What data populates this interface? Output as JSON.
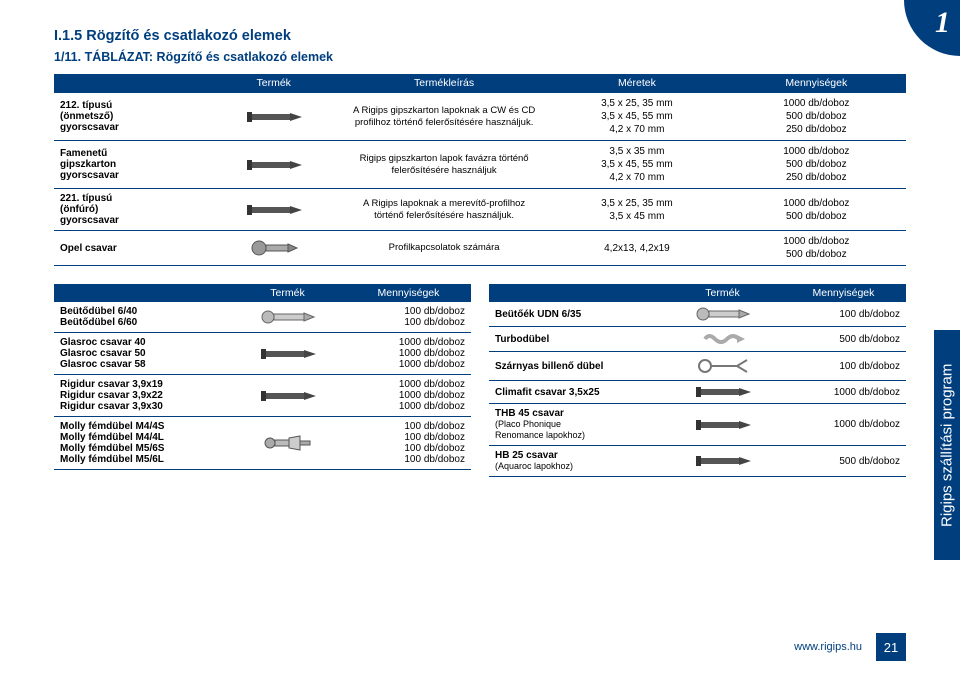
{
  "badge": "1",
  "section_title": "I.1.5 Rögzítő és csatlakozó elemek",
  "table_title": "1/11. TÁBLÁZAT: Rögzítő és csatlakozó elemek",
  "main_table": {
    "headers": [
      "",
      "Termék",
      "Termékleírás",
      "Méretek",
      "Mennyiségek"
    ],
    "rows": [
      {
        "name": "212. típusú\n(önmetsző)\ngyorscsavar",
        "desc": "A Rigips gipszkarton lapoknak a CW és CD profilhoz történő felerősítésére használjuk.",
        "sizes": "3,5 x 25, 35 mm\n3,5 x 45, 55 mm\n4,2 x 70 mm",
        "qty": "1000 db/doboz\n500 db/doboz\n250 db/doboz"
      },
      {
        "name": "Famenetű\ngipszkarton\ngyorscsavar",
        "desc": "Rigips gipszkarton lapok favázra történő felerősítésére használjuk",
        "sizes": "3,5 x 35 mm\n3,5 x 45, 55 mm\n4,2 x 70 mm",
        "qty": "1000 db/doboz\n500 db/doboz\n250 db/doboz"
      },
      {
        "name": "221. típusú\n(önfúró)\ngyorscsavar",
        "desc": "A Rigips lapoknak a merevítő-profilhoz történő felerősítésére használjuk.",
        "sizes": "3,5 x 25, 35 mm\n3,5 x 45 mm",
        "qty": "1000 db/doboz\n500 db/doboz"
      },
      {
        "name": "Opel csavar",
        "desc": "Profilkapcsolatok számára",
        "sizes": "4,2x13, 4,2x19",
        "qty": "1000 db/doboz\n500 db/doboz"
      }
    ]
  },
  "left_table": {
    "headers": [
      "",
      "Termék",
      "Mennyiségek"
    ],
    "rows": [
      {
        "name": "Beütődübel 6/40\nBeütődübel 6/60",
        "qty": "100 db/doboz\n100 db/doboz"
      },
      {
        "name": "Glasroc csavar 40\nGlasroc csavar 50\nGlasroc csavar 58",
        "qty": "1000 db/doboz\n1000 db/doboz\n1000 db/doboz"
      },
      {
        "name": "Rigidur csavar 3,9x19\nRigidur csavar 3,9x22\nRigidur csavar 3,9x30",
        "qty": "1000 db/doboz\n1000 db/doboz\n1000 db/doboz"
      },
      {
        "name": "Molly fémdübel M4/4S\nMolly fémdübel M4/4L\nMolly fémdübel M5/6S\nMolly fémdübel M5/6L",
        "qty": "100 db/doboz\n100 db/doboz\n100 db/doboz\n100 db/doboz"
      }
    ]
  },
  "right_table": {
    "headers": [
      "",
      "Termék",
      "Mennyiségek"
    ],
    "rows": [
      {
        "name": "Beütőék UDN 6/35",
        "qty": "100 db/doboz"
      },
      {
        "name": "Turbodübel",
        "qty": "500 db/doboz"
      },
      {
        "name": "Szárnyas billenő dübel",
        "qty": "100 db/doboz"
      },
      {
        "name": "Climafit csavar 3,5x25",
        "qty": "1000 db/doboz"
      },
      {
        "name": "THB 45 csavar",
        "note": "(Placo Phonique\nRenomance lapokhoz)",
        "qty": "1000 db/doboz"
      },
      {
        "name": "HB 25 csavar",
        "note": "(Aquaroc lapokhoz)",
        "qty": "500 db/doboz"
      }
    ]
  },
  "side_tab": "Rigips szállítási program",
  "url": "www.rigips.hu",
  "page": "21",
  "colors": {
    "brand": "#003e7e",
    "bg": "#ffffff"
  }
}
